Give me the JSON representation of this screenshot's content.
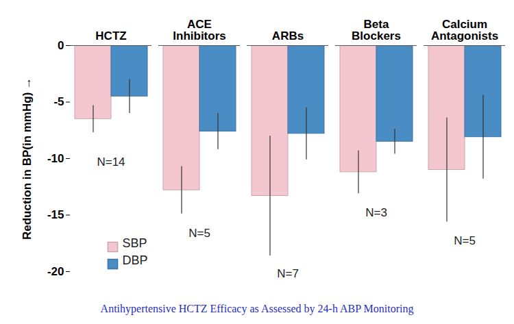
{
  "chart_data": {
    "type": "bar",
    "caption": "Antihypertensive HCTZ Efficacy as Assessed by 24-h ABP Monitoring",
    "y_label": "Reduction in BP(in mmHg)",
    "categories": [
      "HCTZ",
      "ACE Inhibitors",
      "ARBs",
      "Beta Blockers",
      "Calcium Antagonists"
    ],
    "series": [
      {
        "name": "SBP",
        "color": "#f4c6cf",
        "values": [
          -6.5,
          -12.8,
          -13.3,
          -11.2,
          -11.0
        ],
        "errors": [
          1.2,
          2.1,
          5.3,
          1.9,
          4.6
        ]
      },
      {
        "name": "DBP",
        "color": "#4a8cc4",
        "values": [
          -4.5,
          -7.6,
          -7.8,
          -8.5,
          -8.1
        ],
        "errors": [
          1.5,
          1.6,
          2.3,
          1.1,
          3.7
        ]
      }
    ],
    "ylim": [
      -20,
      0
    ],
    "yticks": [
      -20,
      -15,
      -10,
      -5,
      0
    ],
    "grid": false,
    "legend": "bottom-left",
    "annotations": [
      {
        "category": "HCTZ",
        "y": -10.3,
        "text": "N=14"
      },
      {
        "category": "ACE Inhibitors",
        "y": -16.6,
        "text": "N=5"
      },
      {
        "category": "ARBs",
        "y": -20.2,
        "text": "N=7"
      },
      {
        "category": "Beta Blockers",
        "y": -14.8,
        "text": "N=3"
      },
      {
        "category": "Calcium Antagonists",
        "y": -17.3,
        "text": "N=5"
      }
    ]
  }
}
